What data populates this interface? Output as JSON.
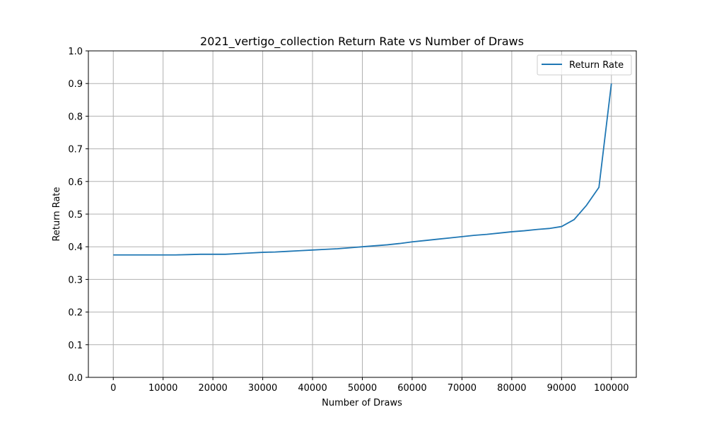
{
  "chart_data": {
    "type": "line",
    "title": "2021_vertigo_collection Return Rate vs Number of Draws",
    "xlabel": "Number of Draws",
    "ylabel": "Return Rate",
    "xlim": [
      -5000,
      105000
    ],
    "ylim": [
      0.0,
      1.0
    ],
    "x_ticks": [
      0,
      10000,
      20000,
      30000,
      40000,
      50000,
      60000,
      70000,
      80000,
      90000,
      100000
    ],
    "x_tick_labels": [
      "0",
      "10000",
      "20000",
      "30000",
      "40000",
      "50000",
      "60000",
      "70000",
      "80000",
      "90000",
      "100000"
    ],
    "y_ticks": [
      0.0,
      0.1,
      0.2,
      0.3,
      0.4,
      0.5,
      0.6,
      0.7,
      0.8,
      0.9,
      1.0
    ],
    "y_tick_labels": [
      "0.0",
      "0.1",
      "0.2",
      "0.3",
      "0.4",
      "0.5",
      "0.6",
      "0.7",
      "0.8",
      "0.9",
      "1.0"
    ],
    "grid": true,
    "legend_position": "top-right",
    "series": [
      {
        "name": "Return Rate",
        "color": "#1f77b4",
        "x": [
          0,
          2500,
          5000,
          7500,
          10000,
          12500,
          15000,
          17500,
          20000,
          22500,
          25000,
          27500,
          30000,
          32500,
          35000,
          37500,
          40000,
          42500,
          45000,
          47500,
          50000,
          52500,
          55000,
          57500,
          60000,
          62500,
          65000,
          67500,
          70000,
          72500,
          75000,
          77500,
          80000,
          82500,
          85000,
          87500,
          90000,
          92500,
          95000,
          97500,
          100000
        ],
        "y": [
          0.375,
          0.375,
          0.375,
          0.375,
          0.375,
          0.375,
          0.376,
          0.377,
          0.377,
          0.377,
          0.379,
          0.381,
          0.383,
          0.384,
          0.386,
          0.388,
          0.39,
          0.392,
          0.394,
          0.397,
          0.4,
          0.403,
          0.406,
          0.41,
          0.415,
          0.419,
          0.423,
          0.427,
          0.431,
          0.435,
          0.438,
          0.442,
          0.446,
          0.449,
          0.453,
          0.456,
          0.462,
          0.483,
          0.527,
          0.582,
          0.9
        ]
      }
    ]
  }
}
